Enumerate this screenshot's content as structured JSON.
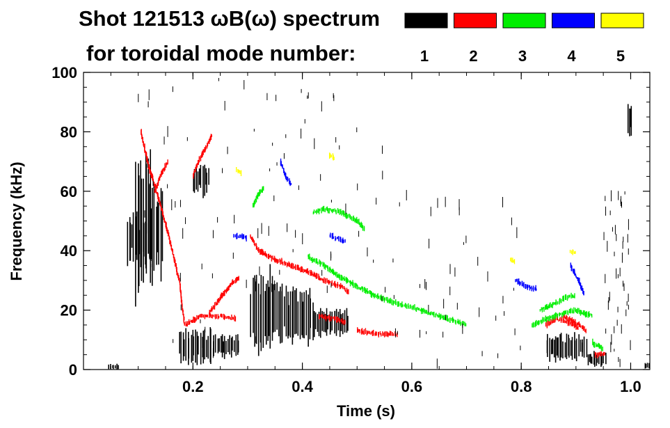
{
  "chart_data": {
    "type": "scatter",
    "title_line1": "Shot 121513 ωB(ω) spectrum",
    "title_line2": "for toroidal mode number:",
    "xlabel": "Time (s)",
    "ylabel": "Frequency (kHz)",
    "xlim": [
      0.0,
      1.035
    ],
    "ylim": [
      0,
      100
    ],
    "x_ticks": [
      {
        "value": 0.2,
        "label": "0.2"
      },
      {
        "value": 0.4,
        "label": "0.4"
      },
      {
        "value": 0.6,
        "label": "0.6"
      },
      {
        "value": 0.8,
        "label": "0.8"
      },
      {
        "value": 1.0,
        "label": "1.0"
      }
    ],
    "y_ticks": [
      {
        "value": 0,
        "label": "0"
      },
      {
        "value": 20,
        "label": "20"
      },
      {
        "value": 40,
        "label": "40"
      },
      {
        "value": 60,
        "label": "60"
      },
      {
        "value": 80,
        "label": "80"
      },
      {
        "value": 100,
        "label": "100"
      }
    ],
    "legend": [
      {
        "n": "1",
        "color": "#000000"
      },
      {
        "n": "2",
        "color": "#ff0000"
      },
      {
        "n": "3",
        "color": "#00ee00"
      },
      {
        "n": "4",
        "color": "#0000ff"
      },
      {
        "n": "5",
        "color": "#ffff00"
      }
    ],
    "series": [
      {
        "mode": "1",
        "name": "black patches",
        "color": "#000000",
        "blobs": [
          {
            "t0": 0.08,
            "t1": 0.115,
            "f0": 35,
            "f1": 52
          },
          {
            "t0": 0.095,
            "t1": 0.125,
            "f0": 25,
            "f1": 75
          },
          {
            "t0": 0.12,
            "t1": 0.145,
            "f0": 30,
            "f1": 65
          },
          {
            "t0": 0.175,
            "t1": 0.235,
            "f0": 2,
            "f1": 14
          },
          {
            "t0": 0.235,
            "t1": 0.285,
            "f0": 4,
            "f1": 12
          },
          {
            "t0": 0.2,
            "t1": 0.23,
            "f0": 58,
            "f1": 70
          },
          {
            "t0": 0.305,
            "t1": 0.36,
            "f0": 5,
            "f1": 34
          },
          {
            "t0": 0.36,
            "t1": 0.42,
            "f0": 8,
            "f1": 28
          },
          {
            "t0": 0.42,
            "t1": 0.485,
            "f0": 11,
            "f1": 21
          },
          {
            "t0": 0.845,
            "t1": 0.92,
            "f0": 3,
            "f1": 12
          },
          {
            "t0": 0.92,
            "t1": 0.955,
            "f0": 1,
            "f1": 6
          },
          {
            "t0": 0.995,
            "t1": 1.002,
            "f0": 78,
            "f1": 90
          },
          {
            "t0": 0.045,
            "t1": 0.065,
            "f0": 0,
            "f1": 2
          },
          {
            "t0": 1.025,
            "t1": 1.034,
            "f0": 0,
            "f1": 3
          }
        ]
      },
      {
        "mode": "2",
        "name": "red streaks",
        "color": "#ff0000",
        "lines": [
          [
            [
              0.105,
              80
            ],
            [
              0.12,
              68
            ],
            [
              0.14,
              56
            ],
            [
              0.16,
              42
            ],
            [
              0.175,
              30
            ],
            [
              0.185,
              15
            ]
          ],
          [
            [
              0.13,
              60
            ],
            [
              0.145,
              67
            ],
            [
              0.155,
              70
            ]
          ],
          [
            [
              0.2,
              65
            ],
            [
              0.21,
              70
            ],
            [
              0.225,
              75
            ],
            [
              0.235,
              79
            ]
          ],
          [
            [
              0.185,
              15
            ],
            [
              0.215,
              18
            ],
            [
              0.25,
              18
            ],
            [
              0.28,
              17
            ]
          ],
          [
            [
              0.23,
              19
            ],
            [
              0.25,
              24
            ],
            [
              0.27,
              29
            ],
            [
              0.285,
              31
            ]
          ],
          [
            [
              0.305,
              45
            ],
            [
              0.32,
              40
            ],
            [
              0.35,
              37
            ],
            [
              0.38,
              35
            ],
            [
              0.41,
              33
            ],
            [
              0.44,
              30
            ],
            [
              0.47,
              28
            ],
            [
              0.485,
              26
            ]
          ],
          [
            [
              0.43,
              18
            ],
            [
              0.46,
              17
            ],
            [
              0.48,
              16
            ]
          ],
          [
            [
              0.5,
              13
            ],
            [
              0.54,
              12
            ],
            [
              0.575,
              12
            ]
          ],
          [
            [
              0.845,
              15
            ],
            [
              0.865,
              17
            ],
            [
              0.885,
              16
            ],
            [
              0.905,
              14
            ]
          ],
          [
            [
              0.875,
              18
            ],
            [
              0.89,
              17
            ],
            [
              0.905,
              15
            ],
            [
              0.92,
              13
            ]
          ],
          [
            [
              0.935,
              5
            ],
            [
              0.955,
              5
            ]
          ]
        ]
      },
      {
        "mode": "3",
        "name": "green streaks",
        "color": "#00ee00",
        "lines": [
          [
            [
              0.41,
              38
            ],
            [
              0.44,
              35
            ],
            [
              0.47,
              31
            ],
            [
              0.5,
              28
            ],
            [
              0.53,
              25
            ],
            [
              0.56,
              23
            ],
            [
              0.6,
              21
            ],
            [
              0.65,
              18
            ],
            [
              0.7,
              15
            ]
          ],
          [
            [
              0.42,
              53
            ],
            [
              0.44,
              54
            ],
            [
              0.47,
              53
            ],
            [
              0.5,
              50
            ],
            [
              0.515,
              47
            ]
          ],
          [
            [
              0.835,
              20
            ],
            [
              0.86,
              22
            ],
            [
              0.88,
              24
            ],
            [
              0.9,
              25
            ]
          ],
          [
            [
              0.82,
              15
            ],
            [
              0.86,
              18
            ],
            [
              0.9,
              20
            ],
            [
              0.93,
              18
            ]
          ],
          [
            [
              0.93,
              9
            ],
            [
              0.95,
              7
            ]
          ],
          [
            [
              0.31,
              55
            ],
            [
              0.32,
              59
            ],
            [
              0.33,
              61
            ]
          ]
        ]
      },
      {
        "mode": "4",
        "name": "blue streaks",
        "color": "#0000ff",
        "lines": [
          [
            [
              0.275,
              45
            ],
            [
              0.29,
              45
            ],
            [
              0.3,
              44
            ]
          ],
          [
            [
              0.45,
              45
            ],
            [
              0.465,
              44
            ],
            [
              0.48,
              43
            ]
          ],
          [
            [
              0.36,
              70
            ],
            [
              0.37,
              65
            ],
            [
              0.38,
              62
            ]
          ],
          [
            [
              0.89,
              35
            ],
            [
              0.905,
              30
            ],
            [
              0.915,
              25
            ]
          ],
          [
            [
              0.79,
              30
            ],
            [
              0.81,
              28
            ],
            [
              0.83,
              27
            ]
          ]
        ]
      },
      {
        "mode": "5",
        "name": "yellow dots",
        "color": "#ffff00",
        "lines": [
          [
            [
              0.28,
              67
            ],
            [
              0.29,
              66
            ]
          ],
          [
            [
              0.45,
              72
            ],
            [
              0.46,
              71
            ]
          ],
          [
            [
              0.78,
              37
            ],
            [
              0.79,
              36
            ]
          ],
          [
            [
              0.89,
              40
            ],
            [
              0.9,
              39
            ]
          ]
        ]
      }
    ]
  }
}
